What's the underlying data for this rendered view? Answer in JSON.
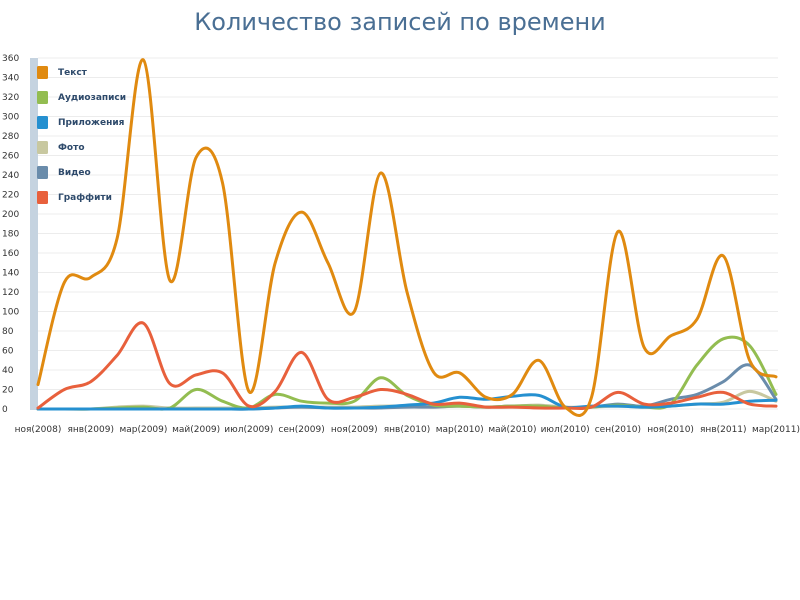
{
  "chart_data": {
    "type": "line",
    "title": "Количество записей по времени",
    "xlabel": "",
    "ylabel": "",
    "ylim": [
      0,
      360
    ],
    "yticks": [
      0,
      20,
      40,
      60,
      80,
      100,
      120,
      140,
      160,
      180,
      200,
      220,
      240,
      260,
      280,
      300,
      320,
      340,
      360
    ],
    "xtick_labels": [
      "ноя(2008)",
      "янв(2009)",
      "мар(2009)",
      "май(2009)",
      "июл(2009)",
      "сен(2009)",
      "ноя(2009)",
      "янв(2010)",
      "мар(2010)",
      "май(2010)",
      "июл(2010)",
      "сен(2010)",
      "ноя(2010)",
      "янв(2011)",
      "мар(2011)"
    ],
    "grid": true,
    "legend_position": "top-left",
    "x": [
      0,
      0.5,
      1,
      1.5,
      2,
      2.5,
      3,
      3.5,
      4,
      4.5,
      5,
      5.5,
      6,
      6.5,
      7,
      7.5,
      8,
      8.5,
      9,
      9.5,
      10,
      10.5,
      11,
      11.5,
      12,
      12.5,
      13,
      13.5,
      14
    ],
    "series": [
      {
        "name": "Текст",
        "color": "#e08a10",
        "values": [
          25,
          130,
          135,
          175,
          358,
          132,
          258,
          232,
          18,
          150,
          202,
          150,
          100,
          242,
          120,
          38,
          37,
          12,
          15,
          50,
          2,
          12,
          182,
          63,
          75,
          92,
          157,
          50,
          33
        ]
      },
      {
        "name": "Аудиозаписи",
        "color": "#93bd51",
        "values": [
          0,
          0,
          0,
          1,
          2,
          1,
          20,
          8,
          1,
          15,
          8,
          6,
          8,
          32,
          14,
          4,
          3,
          2,
          3,
          3,
          1,
          2,
          4,
          2,
          5,
          45,
          72,
          65,
          15
        ]
      },
      {
        "name": "Приложения",
        "color": "#2590d0",
        "values": [
          0,
          0,
          0,
          0,
          0,
          0,
          0,
          0,
          0,
          1,
          3,
          1,
          1,
          2,
          4,
          6,
          12,
          10,
          13,
          14,
          2,
          3,
          3,
          2,
          3,
          5,
          5,
          8,
          9
        ]
      },
      {
        "name": "Фото",
        "color": "#c8c8a0",
        "values": [
          0,
          0,
          0,
          2,
          3,
          1,
          1,
          1,
          1,
          2,
          2,
          2,
          2,
          3,
          3,
          2,
          3,
          2,
          3,
          4,
          2,
          2,
          3,
          2,
          3,
          5,
          7,
          18,
          8
        ]
      },
      {
        "name": "Видео",
        "color": "#6a8cab",
        "values": [
          0,
          0,
          0,
          0,
          0,
          0,
          0,
          0,
          0,
          1,
          2,
          1,
          1,
          1,
          2,
          2,
          3,
          2,
          3,
          3,
          1,
          2,
          5,
          3,
          10,
          15,
          28,
          45,
          10
        ]
      },
      {
        "name": "Граффити",
        "color": "#e8603c",
        "values": [
          1,
          20,
          28,
          55,
          88,
          26,
          35,
          37,
          3,
          18,
          58,
          10,
          12,
          20,
          15,
          5,
          6,
          2,
          2,
          1,
          1,
          2,
          17,
          5,
          6,
          12,
          17,
          5,
          3
        ]
      }
    ]
  }
}
